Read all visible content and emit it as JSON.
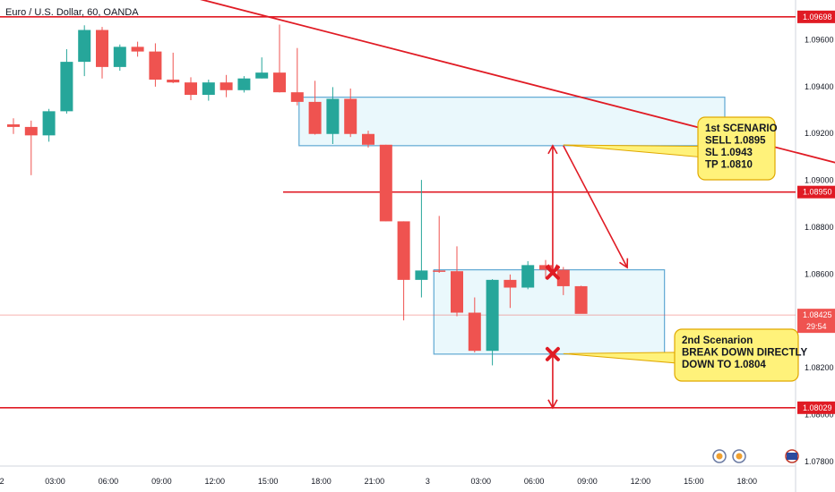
{
  "header": {
    "symbol_title": "Euro / U.S. Dollar, 60, OANDA"
  },
  "chart_data": {
    "type": "candlestick",
    "title": "Euro / U.S. Dollar, 60, OANDA",
    "ylim": [
      1.0778,
      1.0977
    ],
    "y_ticks": [
      "1.09600",
      "1.09400",
      "1.09200",
      "1.09000",
      "1.08800",
      "1.08600",
      "1.08400",
      "1.08200",
      "1.08000",
      "1.07800"
    ],
    "x_ticks": [
      "2",
      "03:00",
      "06:00",
      "09:00",
      "12:00",
      "15:00",
      "18:00",
      "21:00",
      "3",
      "03:00",
      "06:00",
      "09:00",
      "12:00",
      "15:00",
      "18:00"
    ],
    "colors": {
      "up": "#26a69a",
      "down": "#ef5350",
      "line": "#e01b24",
      "zone_border": "#5fa8d3",
      "zone_fill": "#e6f7fb",
      "note_bg": "#fff27a",
      "note_border": "#e0a800"
    },
    "candles": [
      {
        "o": 1.09239,
        "h": 1.09265,
        "l": 1.09198,
        "c": 1.09228
      },
      {
        "o": 1.09228,
        "h": 1.09255,
        "l": 1.09022,
        "c": 1.09192
      },
      {
        "o": 1.09192,
        "h": 1.09305,
        "l": 1.09165,
        "c": 1.09295
      },
      {
        "o": 1.09295,
        "h": 1.0956,
        "l": 1.09285,
        "c": 1.09506
      },
      {
        "o": 1.09506,
        "h": 1.09662,
        "l": 1.09445,
        "c": 1.09642
      },
      {
        "o": 1.09642,
        "h": 1.09655,
        "l": 1.09435,
        "c": 1.09484
      },
      {
        "o": 1.09484,
        "h": 1.0958,
        "l": 1.09468,
        "c": 1.0957
      },
      {
        "o": 1.0957,
        "h": 1.09592,
        "l": 1.09528,
        "c": 1.0955
      },
      {
        "o": 1.0955,
        "h": 1.09585,
        "l": 1.094,
        "c": 1.0943
      },
      {
        "o": 1.0943,
        "h": 1.09545,
        "l": 1.09415,
        "c": 1.09418
      },
      {
        "o": 1.09418,
        "h": 1.0944,
        "l": 1.09342,
        "c": 1.09365
      },
      {
        "o": 1.09365,
        "h": 1.0943,
        "l": 1.0934,
        "c": 1.09418
      },
      {
        "o": 1.09418,
        "h": 1.0945,
        "l": 1.09355,
        "c": 1.09385
      },
      {
        "o": 1.09385,
        "h": 1.09445,
        "l": 1.09375,
        "c": 1.09435
      },
      {
        "o": 1.09435,
        "h": 1.09525,
        "l": 1.09435,
        "c": 1.0946
      },
      {
        "o": 1.0946,
        "h": 1.09665,
        "l": 1.09375,
        "c": 1.09376
      },
      {
        "o": 1.09376,
        "h": 1.09565,
        "l": 1.0932,
        "c": 1.09335
      },
      {
        "o": 1.09335,
        "h": 1.09425,
        "l": 1.09195,
        "c": 1.09198
      },
      {
        "o": 1.09198,
        "h": 1.09398,
        "l": 1.09155,
        "c": 1.09348
      },
      {
        "o": 1.09348,
        "h": 1.09392,
        "l": 1.09185,
        "c": 1.09198
      },
      {
        "o": 1.09198,
        "h": 1.09212,
        "l": 1.0914,
        "c": 1.09152
      },
      {
        "o": 1.09152,
        "h": 1.09152,
        "l": 1.08825,
        "c": 1.08825
      },
      {
        "o": 1.08825,
        "h": 1.08825,
        "l": 1.08402,
        "c": 1.08575
      },
      {
        "o": 1.08575,
        "h": 1.09002,
        "l": 1.085,
        "c": 1.08615
      },
      {
        "o": 1.08615,
        "h": 1.08848,
        "l": 1.08605,
        "c": 1.08612
      },
      {
        "o": 1.08612,
        "h": 1.08718,
        "l": 1.0842,
        "c": 1.08435
      },
      {
        "o": 1.08435,
        "h": 1.085,
        "l": 1.08265,
        "c": 1.08272
      },
      {
        "o": 1.08272,
        "h": 1.08578,
        "l": 1.0821,
        "c": 1.08575
      },
      {
        "o": 1.08575,
        "h": 1.08598,
        "l": 1.08455,
        "c": 1.08542
      },
      {
        "o": 1.08542,
        "h": 1.08655,
        "l": 1.08535,
        "c": 1.08638
      },
      {
        "o": 1.08638,
        "h": 1.0866,
        "l": 1.0858,
        "c": 1.08618
      },
      {
        "o": 1.08618,
        "h": 1.0863,
        "l": 1.0851,
        "c": 1.08548
      },
      {
        "o": 1.08548,
        "h": 1.0855,
        "l": 1.08435,
        "c": 1.0843
      }
    ],
    "levels": [
      {
        "price": 1.09698,
        "label": "1.09698",
        "from": "left"
      },
      {
        "price": 1.0895,
        "label": "1.08950",
        "from": "x316"
      },
      {
        "price": 1.08029,
        "label": "1.08029",
        "from": "left"
      }
    ],
    "current_price": {
      "price": 1.08425,
      "label": "1.08425",
      "countdown": "29:54"
    },
    "trendline": {
      "start": {
        "bar": -0.6,
        "price": 1.0999
      },
      "end": {
        "bar": 49.6,
        "price": 1.09012
      }
    },
    "zones": [
      {
        "bar_from": 16.1,
        "bar_to": 40.1,
        "price_top": 1.09355,
        "price_bottom": 1.09148
      },
      {
        "bar_from": 23.7,
        "bar_to": 36.7,
        "price_top": 1.08618,
        "price_bottom": 1.08258
      }
    ],
    "notes": [
      {
        "lines": [
          "1st SCENARIO",
          "SELL 1.0895",
          "SL 1.0943",
          "TP 1.0810"
        ],
        "anchor": {
          "bar": 31.0,
          "price": 1.09151
        }
      },
      {
        "lines": [
          "2nd Scenarion",
          "BREAK DOWN DIRECTLY",
          "DOWN TO 1.0804"
        ],
        "anchor": {
          "bar": 31.0,
          "price": 1.0826
        }
      }
    ],
    "arrows": [
      {
        "from": {
          "bar": 30.4,
          "price": 1.09148
        },
        "to": {
          "bar": 30.4,
          "price": 1.08606
        },
        "both": true
      },
      {
        "from": {
          "bar": 30.4,
          "price": 1.08258
        },
        "to": {
          "bar": 30.4,
          "price": 1.08029
        },
        "both": false
      },
      {
        "from": {
          "bar": 31.0,
          "price": 1.09148
        },
        "to": {
          "bar": 34.6,
          "price": 1.08628
        },
        "both": false
      }
    ],
    "crosses": [
      {
        "bar": 30.4,
        "price": 1.08606
      },
      {
        "bar": 30.4,
        "price": 1.08258
      }
    ]
  }
}
